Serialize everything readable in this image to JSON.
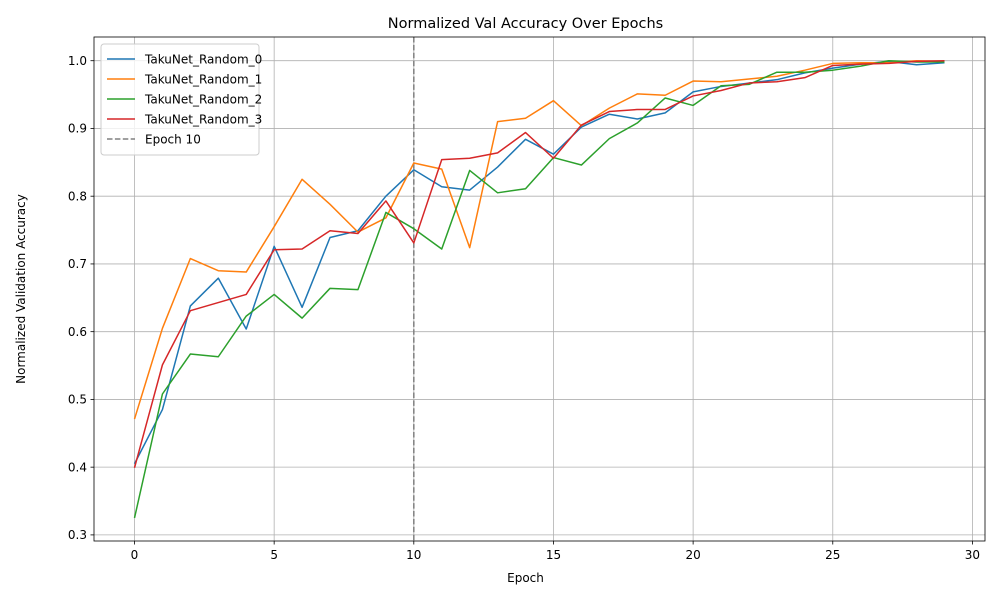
{
  "chart_data": {
    "type": "line",
    "title": "Normalized Val Accuracy Over Epochs",
    "xlabel": "Epoch",
    "ylabel": "Normalized Validation Accuracy",
    "xlim": [
      -1.45,
      30.45
    ],
    "ylim": [
      0.291,
      1.035
    ],
    "xticks": [
      0,
      5,
      10,
      15,
      20,
      25,
      30
    ],
    "yticks": [
      0.3,
      0.4,
      0.5,
      0.6,
      0.7,
      0.8,
      0.9,
      1.0
    ],
    "grid": true,
    "legend_position": "top-left",
    "x": [
      0,
      1,
      2,
      3,
      4,
      5,
      6,
      7,
      8,
      9,
      10,
      11,
      12,
      13,
      14,
      15,
      16,
      17,
      18,
      19,
      20,
      21,
      22,
      23,
      24,
      25,
      26,
      27,
      28,
      29
    ],
    "series": [
      {
        "name": "TakuNet_Random_0",
        "color": "#1f77b4",
        "values": [
          0.405,
          0.485,
          0.638,
          0.679,
          0.604,
          0.726,
          0.636,
          0.739,
          0.749,
          0.8,
          0.839,
          0.814,
          0.809,
          0.843,
          0.884,
          0.862,
          0.902,
          0.921,
          0.914,
          0.923,
          0.954,
          0.962,
          0.967,
          0.972,
          0.982,
          0.989,
          0.995,
          0.999,
          0.994,
          0.997
        ]
      },
      {
        "name": "TakuNet_Random_1",
        "color": "#ff7f0e",
        "values": [
          0.471,
          0.605,
          0.708,
          0.69,
          0.688,
          0.755,
          0.825,
          0.788,
          0.747,
          0.768,
          0.849,
          0.84,
          0.724,
          0.91,
          0.915,
          0.941,
          0.904,
          0.93,
          0.951,
          0.949,
          0.97,
          0.969,
          0.973,
          0.977,
          0.986,
          0.996,
          0.997,
          0.997,
          1.0,
          0.999
        ]
      },
      {
        "name": "TakuNet_Random_2",
        "color": "#2ca02c",
        "values": [
          0.325,
          0.508,
          0.567,
          0.563,
          0.623,
          0.655,
          0.62,
          0.664,
          0.662,
          0.776,
          0.752,
          0.722,
          0.838,
          0.805,
          0.811,
          0.857,
          0.846,
          0.885,
          0.908,
          0.945,
          0.934,
          0.963,
          0.965,
          0.983,
          0.983,
          0.986,
          0.992,
          1.0,
          0.998,
          0.998
        ]
      },
      {
        "name": "TakuNet_Random_3",
        "color": "#d62728",
        "values": [
          0.399,
          0.551,
          0.631,
          0.643,
          0.655,
          0.721,
          0.722,
          0.749,
          0.745,
          0.793,
          0.731,
          0.854,
          0.856,
          0.864,
          0.894,
          0.856,
          0.905,
          0.925,
          0.928,
          0.928,
          0.948,
          0.956,
          0.967,
          0.969,
          0.975,
          0.993,
          0.995,
          0.996,
          0.999,
          1.0
        ]
      }
    ],
    "reference_line": {
      "name": "Epoch 10",
      "x": 10,
      "color": "#808080",
      "style": "dashed"
    }
  }
}
